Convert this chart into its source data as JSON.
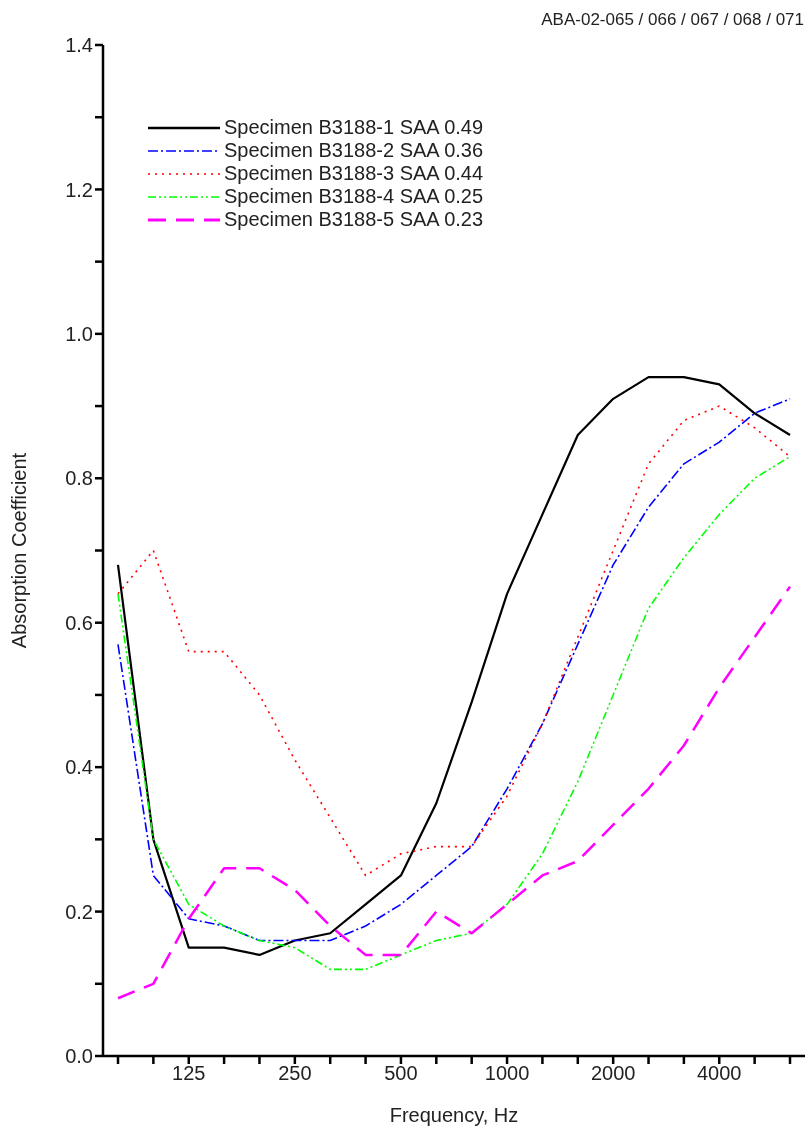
{
  "chart_data": {
    "type": "line",
    "annotations": [
      "ABA-02-065 / 066 / 067 / 068 / 071"
    ],
    "xlabel": "Frequency, Hz",
    "ylabel": "Absorption Coefficient",
    "categories": [
      null,
      null,
      "125",
      null,
      null,
      "250",
      null,
      null,
      "500",
      null,
      null,
      "1000",
      null,
      null,
      "2000",
      null,
      null,
      "4000",
      null,
      null
    ],
    "series": [
      {
        "name": "Specimen B3188-1 SAA 0.49",
        "color": "#000000",
        "line_style": "solid",
        "values": [
          0.68,
          0.3,
          0.15,
          0.15,
          0.14,
          0.16,
          0.17,
          0.21,
          0.25,
          0.35,
          0.49,
          0.64,
          0.75,
          0.86,
          0.91,
          0.94,
          0.94,
          0.93,
          0.89,
          0.86
        ]
      },
      {
        "name": "Specimen B3188-2 SAA 0.36",
        "color": "#0000ff",
        "line_style": "dashdot",
        "values": [
          0.57,
          0.25,
          0.19,
          0.18,
          0.16,
          0.16,
          0.16,
          0.18,
          0.21,
          0.25,
          0.29,
          0.37,
          0.46,
          0.57,
          0.68,
          0.76,
          0.82,
          0.85,
          0.89,
          0.91
        ]
      },
      {
        "name": "Specimen B3188-3 SAA 0.44",
        "color": "#ff0000",
        "line_style": "dotted",
        "values": [
          0.64,
          0.7,
          0.56,
          0.56,
          0.5,
          0.41,
          0.33,
          0.25,
          0.28,
          0.29,
          0.29,
          0.36,
          0.46,
          0.58,
          0.7,
          0.82,
          0.88,
          0.9,
          0.87,
          0.83
        ]
      },
      {
        "name": "Specimen B3188-4 SAA 0.25",
        "color": "#00ff00",
        "line_style": "dashdotdot",
        "values": [
          0.64,
          0.3,
          0.21,
          0.18,
          0.16,
          0.15,
          0.12,
          0.12,
          0.14,
          0.16,
          0.17,
          0.21,
          0.28,
          0.38,
          0.5,
          0.62,
          0.69,
          0.75,
          0.8,
          0.83
        ]
      },
      {
        "name": "Specimen B3188-5 SAA 0.23",
        "color": "#ff00ff",
        "line_style": "dashed",
        "values": [
          0.08,
          0.1,
          0.19,
          0.26,
          0.26,
          0.23,
          0.18,
          0.14,
          0.14,
          0.2,
          0.17,
          0.21,
          0.25,
          0.27,
          0.32,
          0.37,
          0.43,
          0.51,
          0.58,
          0.65
        ]
      }
    ],
    "ylim": [
      0,
      1.4
    ],
    "yticks": [
      {
        "value": 0,
        "label": "0.0"
      },
      {
        "value": 0.1,
        "label": null
      },
      0.2,
      {
        "value": 0.3,
        "label": null
      },
      0.4,
      {
        "value": 0.5,
        "label": null
      },
      0.6,
      {
        "value": 0.7,
        "label": null
      },
      0.8,
      {
        "value": 0.9,
        "label": null
      },
      {
        "value": 1.0,
        "label": "1.0"
      },
      {
        "value": 1.1,
        "label": null
      },
      1.2,
      {
        "value": 1.3,
        "label": null
      },
      1.4
    ],
    "grid": false,
    "legend": "top left",
    "marker": "none"
  }
}
